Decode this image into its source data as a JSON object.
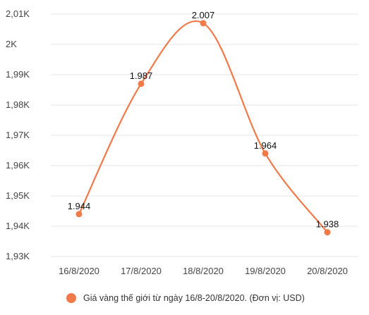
{
  "chart_data": {
    "type": "line",
    "smooth": true,
    "categories": [
      "16/8/2020",
      "17/8/2020",
      "18/8/2020",
      "19/8/2020",
      "20/8/2020"
    ],
    "series": [
      {
        "name": "Giá vàng thế giới từ ngày 16/8-20/8/2020. (Đơn vị: USD)",
        "values": [
          1944,
          1987,
          2007,
          1964,
          1938
        ],
        "data_labels": [
          "1.944",
          "1.987",
          "2.007",
          "1.964",
          "1.938"
        ],
        "color": "#f07a4a"
      }
    ],
    "yticks": [
      1930,
      1940,
      1950,
      1960,
      1970,
      1980,
      1990,
      2000,
      2010
    ],
    "ytick_labels": [
      "1,93K",
      "1,94K",
      "1,95K",
      "1,96K",
      "1,97K",
      "1,98K",
      "1,99K",
      "2K",
      "2,01K"
    ],
    "ylim": [
      1930,
      2010
    ],
    "grid": "horizontal",
    "legend_position": "bottom"
  }
}
